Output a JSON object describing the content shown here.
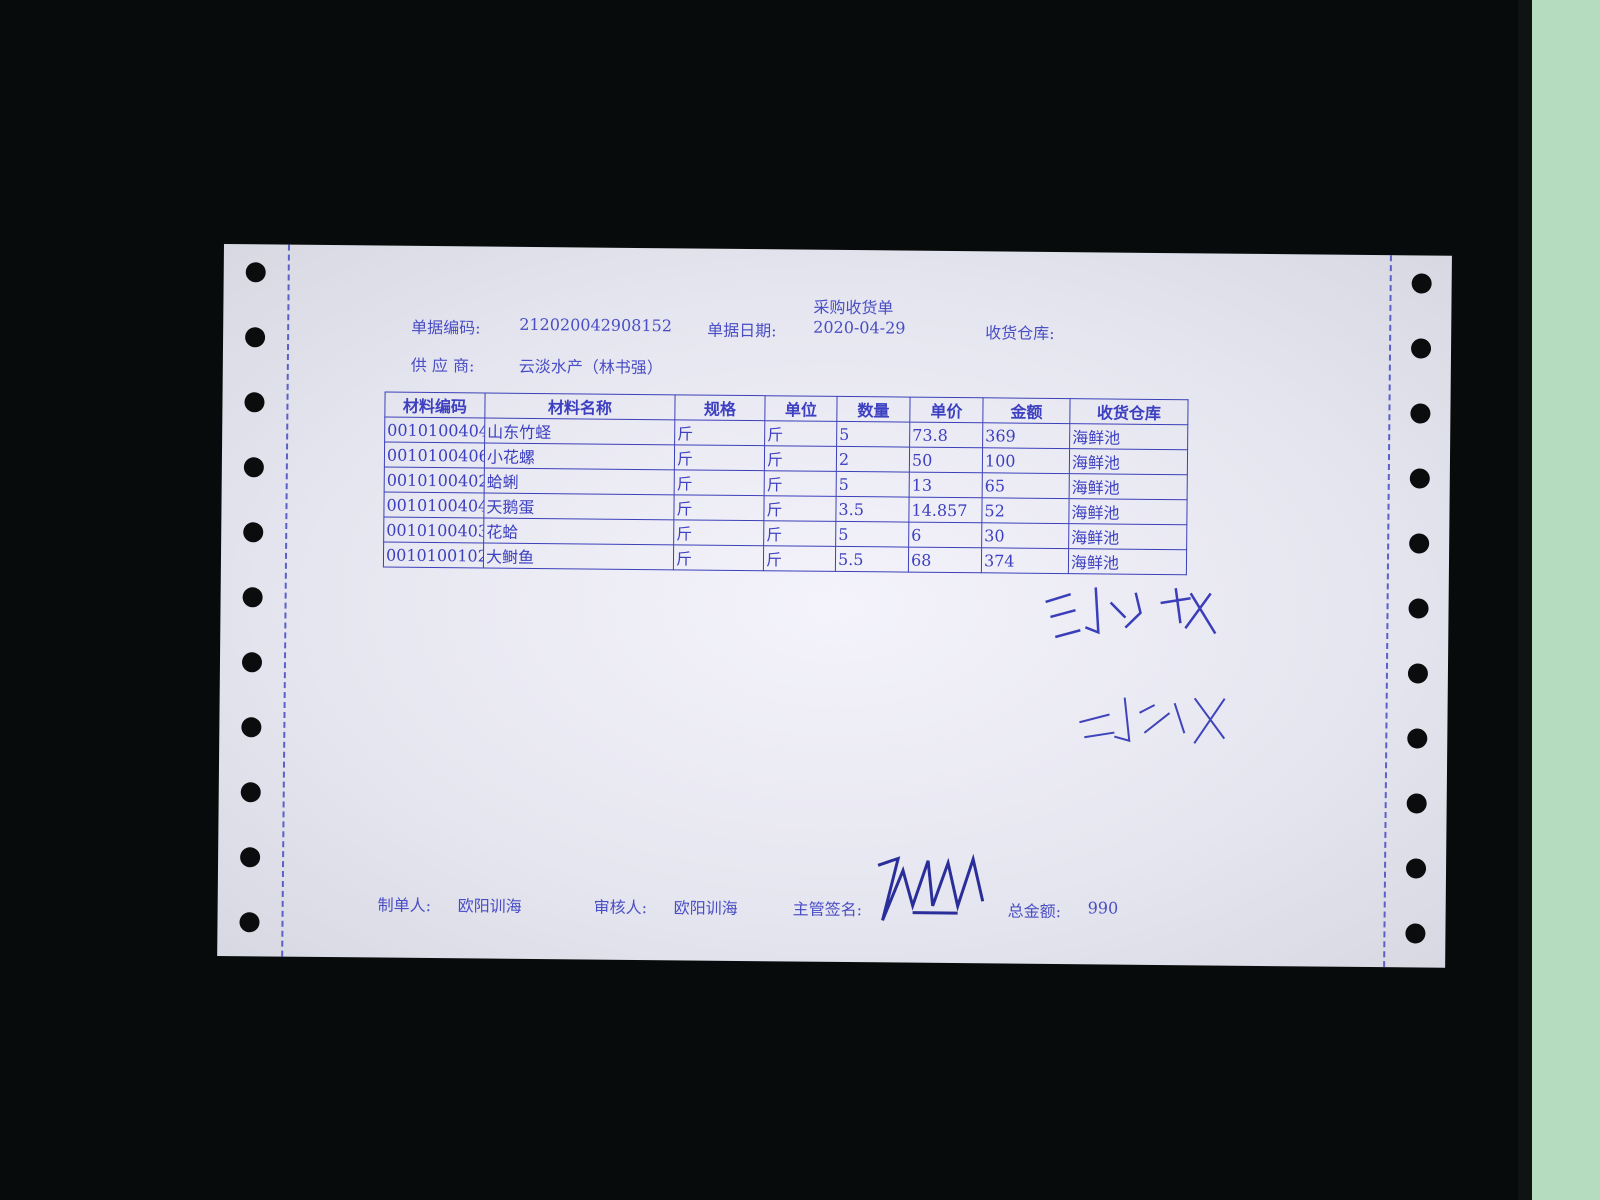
{
  "document": {
    "title": "采购收货单",
    "doc_number_label": "单据编码:",
    "doc_number": "212020042908152",
    "doc_date_label": "单据日期:",
    "doc_date": "2020-04-29",
    "warehouse_label": "收货仓库:",
    "supplier_label": "供 应 商:",
    "supplier": "云淡水产（林书强）"
  },
  "table": {
    "headers": [
      "材料编码",
      "材料名称",
      "规格",
      "单位",
      "数量",
      "单价",
      "金额",
      "收货仓库"
    ],
    "rows": [
      [
        "0010100404",
        "山东竹蛏",
        "斤",
        "斤",
        "5",
        "73.8",
        "369",
        "海鲜池"
      ],
      [
        "0010100406",
        "小花螺",
        "斤",
        "斤",
        "2",
        "50",
        "100",
        "海鲜池"
      ],
      [
        "0010100402",
        "蛤蜊",
        "斤",
        "斤",
        "5",
        "13",
        "65",
        "海鲜池"
      ],
      [
        "0010100404",
        "天鹅蛋",
        "斤",
        "斤",
        "3.5",
        "14.857",
        "52",
        "海鲜池"
      ],
      [
        "0010100403",
        "花蛤",
        "斤",
        "斤",
        "5",
        "6",
        "30",
        "海鲜池"
      ],
      [
        "0010100102",
        "大鲥鱼",
        "斤",
        "斤",
        "5.5",
        "68",
        "374",
        "海鲜池"
      ]
    ]
  },
  "footer": {
    "maker_label": "制单人:",
    "maker": "欧阳训海",
    "reviewer_label": "审核人:",
    "reviewer": "欧阳训海",
    "supervisor_label": "主管签名:",
    "total_label": "总金额:",
    "total": "990"
  },
  "signatures": [
    "刘学义",
    "刘淡义"
  ],
  "colors": {
    "ink": "#4a4ec4",
    "paper": "#ececf4",
    "background": "#080b0b"
  }
}
